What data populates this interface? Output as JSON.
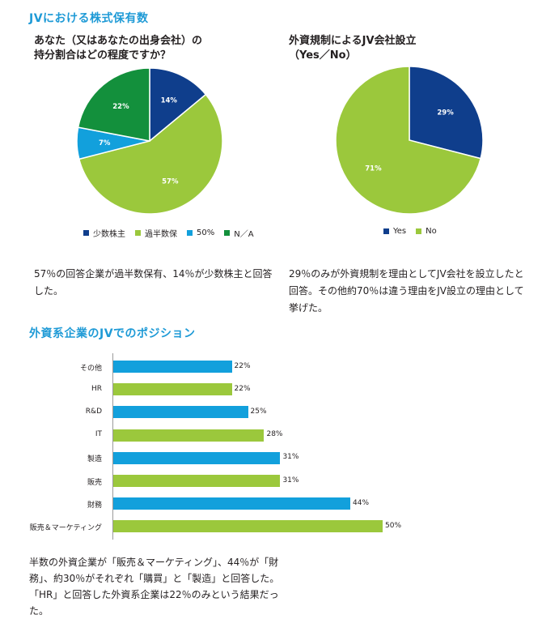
{
  "section1": {
    "title": "JVにおける株式保有数"
  },
  "chart1": {
    "question_line1": "あなた（又はあなたの出身会社）の",
    "question_line2": "持分割合はどの程度ですか？",
    "paragraph": "57％の回答企業が過半数保有、14％が少数株主と回答した。"
  },
  "chart2": {
    "question_line1": "外資規制によるJV会社設立",
    "question_line2": "（Yes／No）",
    "paragraph": "29％のみが外資規制を理由としてJV会社を設立したと回答。その他約70％は違う理由をJV設立の理由として挙げた。"
  },
  "section2": {
    "title": "外資系企業のJVでのポジション"
  },
  "chart3": {
    "paragraph": "半数の外資企業が「販売＆マーケティング」、44％が「財務」、約30％がそれぞれ「購買」と「製造」と回答した。「HR」と回答した外資系企業は22％のみという結果だった。"
  },
  "colors": {
    "dark_blue": "#0f3e8c",
    "light_green": "#9bc83c",
    "cyan": "#12a0dc",
    "green": "#13903c",
    "section_title": "#1e9ad6"
  },
  "chart_data": [
    {
      "type": "pie",
      "title": "あなた（又はあなたの出身会社）の持分割合はどの程度ですか？",
      "slices": [
        {
          "label": "少数株主",
          "value": 14,
          "display": "14%",
          "color": "#0f3e8c"
        },
        {
          "label": "過半数保",
          "value": 57,
          "display": "57%",
          "color": "#9bc83c"
        },
        {
          "label": "50%",
          "value": 7,
          "display": "7%",
          "color": "#12a0dc"
        },
        {
          "label": "N／A",
          "value": 22,
          "display": "22%",
          "color": "#13903c"
        }
      ],
      "legend": "bottom"
    },
    {
      "type": "pie",
      "title": "外資規制によるJV会社設立（Yes／No）",
      "slices": [
        {
          "label": "Yes",
          "value": 29,
          "display": "29%",
          "color": "#0f3e8c"
        },
        {
          "label": "No",
          "value": 71,
          "display": "71%",
          "color": "#9bc83c"
        }
      ],
      "legend": "bottom"
    },
    {
      "type": "bar",
      "orientation": "horizontal",
      "title": "外資系企業のJVでのポジション",
      "categories": [
        "その他",
        "HR",
        "R&D",
        "IT",
        "製造",
        "販売",
        "財務",
        "販売＆マーケティング"
      ],
      "values": [
        22,
        22,
        25,
        28,
        31,
        31,
        44,
        50
      ],
      "display": [
        "22%",
        "22%",
        "25%",
        "28%",
        "31%",
        "31%",
        "44%",
        "50%"
      ],
      "bar_colors": [
        "#12a0dc",
        "#9bc83c",
        "#12a0dc",
        "#9bc83c",
        "#12a0dc",
        "#9bc83c",
        "#12a0dc",
        "#9bc83c"
      ],
      "xlim": [
        0,
        50
      ]
    }
  ]
}
